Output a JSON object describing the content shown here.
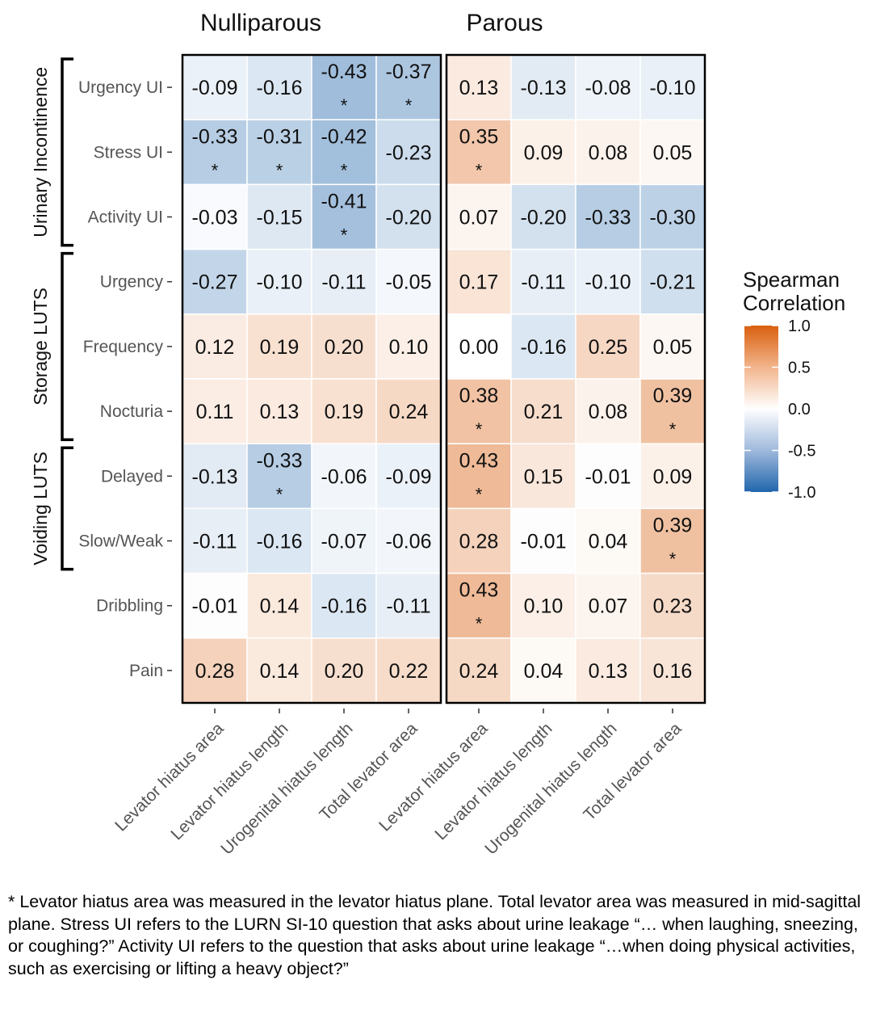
{
  "chart_data": {
    "type": "heatmap",
    "panels": [
      "Nulliparous",
      "Parous"
    ],
    "rows": [
      "Urgency UI",
      "Stress UI",
      "Activity UI",
      "Urgency",
      "Frequency",
      "Nocturia",
      "Delayed",
      "Slow/Weak",
      "Dribbling",
      "Pain"
    ],
    "columns": [
      "Levator hiatus area",
      "Levator hiatus length",
      "Urogenital hiatus length",
      "Total levator area"
    ],
    "values": {
      "Nulliparous": [
        [
          -0.09,
          -0.16,
          -0.43,
          -0.37
        ],
        [
          -0.33,
          -0.31,
          -0.42,
          -0.23
        ],
        [
          -0.03,
          -0.15,
          -0.41,
          -0.2
        ],
        [
          -0.27,
          -0.1,
          -0.11,
          -0.05
        ],
        [
          0.12,
          0.19,
          0.2,
          0.1
        ],
        [
          0.11,
          0.13,
          0.19,
          0.24
        ],
        [
          -0.13,
          -0.33,
          -0.06,
          -0.09
        ],
        [
          -0.11,
          -0.16,
          -0.07,
          -0.06
        ],
        [
          -0.01,
          0.14,
          -0.16,
          -0.11
        ],
        [
          0.28,
          0.14,
          0.2,
          0.22
        ]
      ],
      "Parous": [
        [
          0.13,
          -0.13,
          -0.08,
          -0.1
        ],
        [
          0.35,
          0.09,
          0.08,
          0.05
        ],
        [
          0.07,
          -0.2,
          -0.33,
          -0.3
        ],
        [
          0.17,
          -0.11,
          -0.1,
          -0.21
        ],
        [
          0.0,
          -0.16,
          0.25,
          0.05
        ],
        [
          0.38,
          0.21,
          0.08,
          0.39
        ],
        [
          0.43,
          0.15,
          -0.01,
          0.09
        ],
        [
          0.28,
          -0.01,
          0.04,
          0.39
        ],
        [
          0.43,
          0.1,
          0.07,
          0.23
        ],
        [
          0.24,
          0.04,
          0.13,
          0.16
        ]
      ]
    },
    "labels": {
      "Nulliparous": [
        [
          "-0.09",
          "-0.16",
          "-0.43",
          "-0.37"
        ],
        [
          "-0.33",
          "-0.31",
          "-0.42",
          "-0.23"
        ],
        [
          "-0.03",
          "-0.15",
          "-0.41",
          "-0.20"
        ],
        [
          "-0.27",
          "-0.10",
          "-0.11",
          "-0.05"
        ],
        [
          "0.12",
          "0.19",
          "0.20",
          "0.10"
        ],
        [
          "0.11",
          "0.13",
          "0.19",
          "0.24"
        ],
        [
          "-0.13",
          "-0.33",
          "-0.06",
          "-0.09"
        ],
        [
          "-0.11",
          "-0.16",
          "-0.07",
          "-0.06"
        ],
        [
          "-0.01",
          "0.14",
          "-0.16",
          "-0.11"
        ],
        [
          "0.28",
          "0.14",
          "0.20",
          "0.22"
        ]
      ],
      "Parous": [
        [
          "0.13",
          "-0.13",
          "-0.08",
          "-0.10"
        ],
        [
          "0.35",
          "0.09",
          "0.08",
          "0.05"
        ],
        [
          "0.07",
          "-0.20",
          "-0.33",
          "-0.30"
        ],
        [
          "0.17",
          "-0.11",
          "-0.10",
          "-0.21"
        ],
        [
          "0.00",
          "-0.16",
          "0.25",
          "0.05"
        ],
        [
          "0.38",
          "0.21",
          "0.08",
          "0.39"
        ],
        [
          "0.43",
          "0.15",
          "-0.01",
          "0.09"
        ],
        [
          "0.28",
          "-0.01",
          "0.04",
          "0.39"
        ],
        [
          "0.43",
          "0.10",
          "0.07",
          "0.23"
        ],
        [
          "0.24",
          "0.04",
          "0.13",
          "0.16"
        ]
      ]
    },
    "significant": {
      "Nulliparous": [
        [
          false,
          false,
          true,
          true
        ],
        [
          true,
          true,
          true,
          false
        ],
        [
          false,
          false,
          true,
          false
        ],
        [
          false,
          false,
          false,
          false
        ],
        [
          false,
          false,
          false,
          false
        ],
        [
          false,
          false,
          false,
          false
        ],
        [
          false,
          true,
          false,
          false
        ],
        [
          false,
          false,
          false,
          false
        ],
        [
          false,
          false,
          false,
          false
        ],
        [
          false,
          false,
          false,
          false
        ]
      ],
      "Parous": [
        [
          false,
          false,
          false,
          false
        ],
        [
          true,
          false,
          false,
          false
        ],
        [
          false,
          false,
          false,
          false
        ],
        [
          false,
          false,
          false,
          false
        ],
        [
          false,
          false,
          false,
          false
        ],
        [
          true,
          false,
          false,
          true
        ],
        [
          true,
          false,
          false,
          false
        ],
        [
          false,
          false,
          false,
          true
        ],
        [
          true,
          false,
          false,
          false
        ],
        [
          false,
          false,
          false,
          false
        ]
      ]
    },
    "significance_marker": "*",
    "row_groups": [
      {
        "label": "Urinary Incontinence",
        "start": 0,
        "end": 2
      },
      {
        "label": "Storage LUTS",
        "start": 3,
        "end": 5
      },
      {
        "label": "Voiding LUTS",
        "start": 6,
        "end": 7
      }
    ],
    "legend": {
      "title": [
        "Spearman",
        "Correlation"
      ],
      "ticks": [
        "1.0",
        "0.5",
        "0.0",
        "-0.5",
        "-1.0"
      ],
      "tick_values": [
        1.0,
        0.5,
        0.0,
        -0.5,
        -1.0
      ],
      "range": [
        -1.0,
        1.0
      ],
      "placement": "right"
    },
    "colors": {
      "negative": "#2166ac",
      "zero": "#ffffff",
      "positive": "#d95f0e",
      "grid": "#ffffff",
      "border": "#000000"
    }
  },
  "footnote": "* Levator hiatus area was measured in the levator hiatus plane. Total levator area was measured in mid-sagittal plane. Stress UI refers to the LURN SI-10 question that asks about urine leakage “… when laughing, sneezing, or coughing?” Activity UI refers to the question that asks about urine leakage “…when doing physical activities, such as exercising or lifting a heavy object?”"
}
